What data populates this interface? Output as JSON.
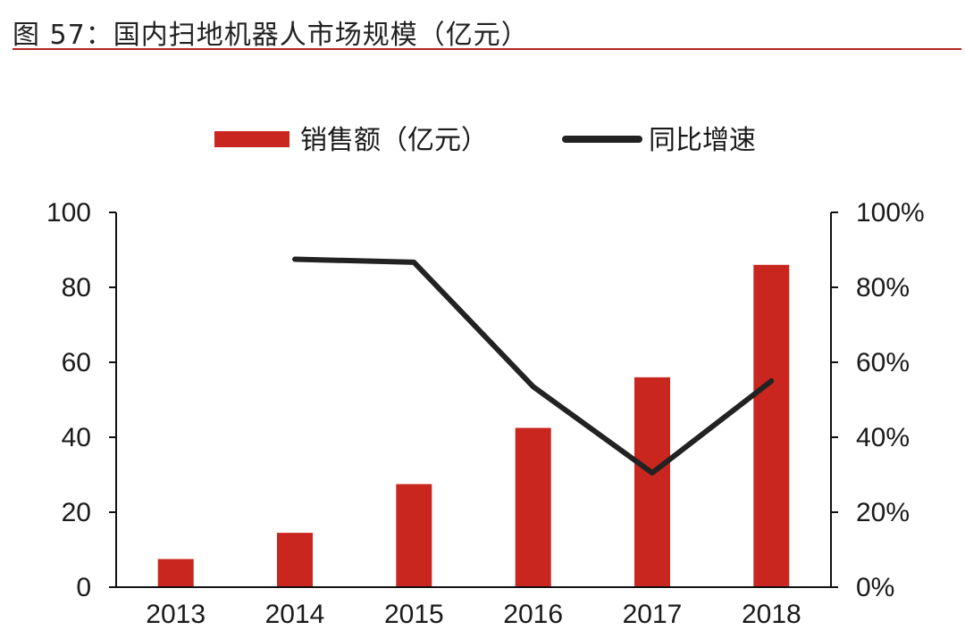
{
  "figure": {
    "title": "图 57：国内扫地机器人市场规模（亿元）"
  },
  "colors": {
    "bar": "#c9261f",
    "line": "#222222",
    "title_rule": "#b3261e"
  },
  "chart_data": {
    "type": "bar",
    "title": "",
    "categories": [
      "2013",
      "2014",
      "2015",
      "2016",
      "2017",
      "2018"
    ],
    "series": [
      {
        "name": "销售额（亿元）",
        "type": "bar",
        "axis": "left",
        "values": [
          7.5,
          14.5,
          27.5,
          42.5,
          56,
          86
        ]
      },
      {
        "name": "同比增速",
        "type": "line",
        "axis": "right",
        "values": [
          null,
          0.875,
          0.867,
          0.535,
          0.305,
          0.55
        ]
      }
    ],
    "y_left": {
      "label": "",
      "ylim": [
        0,
        100
      ],
      "ticks": [
        "0",
        "20",
        "40",
        "60",
        "80",
        "100"
      ]
    },
    "y_right": {
      "label": "",
      "ylim": [
        0,
        1
      ],
      "ticks": [
        "0%",
        "20%",
        "40%",
        "60%",
        "80%",
        "100%"
      ]
    },
    "xlabel": "",
    "grid": false,
    "legend_position": "top"
  }
}
